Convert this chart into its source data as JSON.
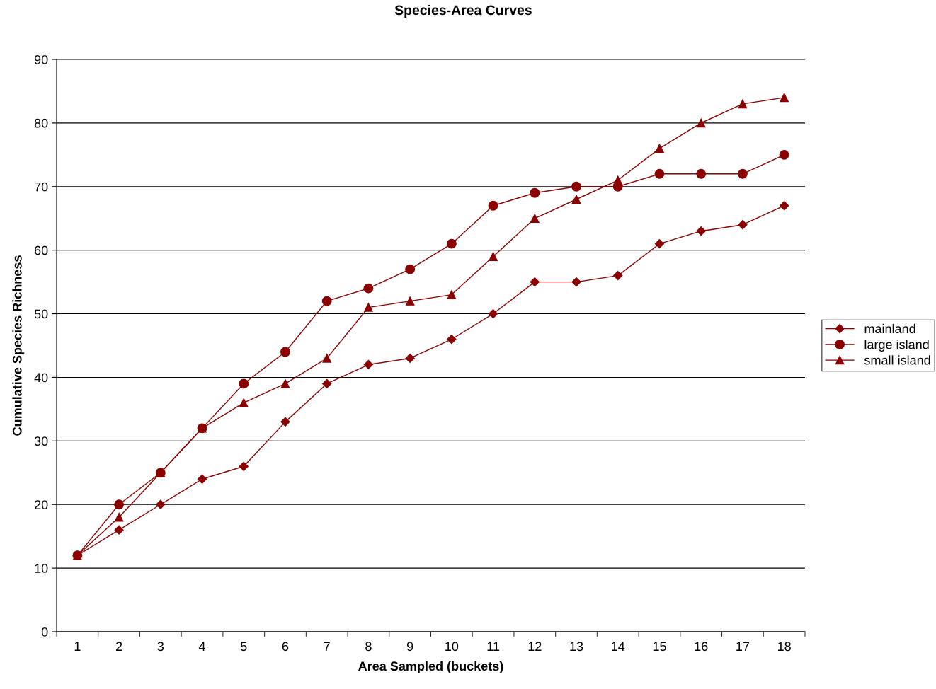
{
  "chart_data": {
    "type": "line",
    "title": "Species-Area Curves",
    "xlabel": "Area Sampled (buckets)",
    "ylabel": "Cumulative Species Richness",
    "categories": [
      "1",
      "2",
      "3",
      "4",
      "5",
      "6",
      "7",
      "8",
      "9",
      "10",
      "11",
      "12",
      "13",
      "14",
      "15",
      "16",
      "17",
      "18"
    ],
    "series": [
      {
        "name": "mainland",
        "color": "#8b0000",
        "marker": "diamond",
        "values": [
          12,
          16,
          20,
          24,
          26,
          33,
          39,
          42,
          43,
          46,
          50,
          55,
          55,
          56,
          61,
          63,
          64,
          67
        ]
      },
      {
        "name": "large island",
        "color": "#8b0000",
        "marker": "circle",
        "values": [
          12,
          20,
          25,
          32,
          39,
          44,
          52,
          54,
          57,
          61,
          67,
          69,
          70,
          70,
          72,
          72,
          72,
          75
        ]
      },
      {
        "name": "small island",
        "color": "#8b0000",
        "marker": "triangle",
        "values": [
          12,
          18,
          25,
          32,
          36,
          39,
          43,
          51,
          52,
          53,
          59,
          65,
          68,
          71,
          76,
          80,
          83,
          84
        ]
      }
    ],
    "ylim": [
      0,
      90
    ],
    "yticks": [
      0,
      10,
      20,
      30,
      40,
      50,
      60,
      70,
      80,
      90
    ],
    "grid": "y",
    "legend": "right",
    "line_style": "solid"
  }
}
